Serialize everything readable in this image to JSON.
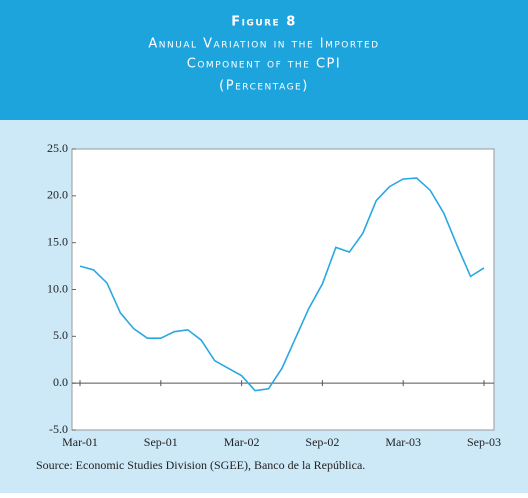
{
  "chart_data": {
    "type": "line",
    "title": [
      "Figure 8",
      "Annual Variation in the Imported",
      "Component of the CPI"
    ],
    "subtitle": "(Percentage)",
    "source": "Source: Economic Studies Division (SGEE), Banco de la República.",
    "categories": [
      "Mar-01",
      null,
      null,
      null,
      null,
      null,
      "Sep-01",
      null,
      null,
      null,
      null,
      null,
      "Mar-02",
      null,
      null,
      null,
      null,
      null,
      "Sep-02",
      null,
      null,
      null,
      null,
      null,
      "Mar-03",
      null,
      null,
      null,
      null,
      null,
      "Sep-03"
    ],
    "series": [
      {
        "color": "#29a8e0",
        "values": [
          12.5,
          12.1,
          10.7,
          7.5,
          5.8,
          4.8,
          4.8,
          5.5,
          5.7,
          4.6,
          2.4,
          1.6,
          0.8,
          -0.8,
          -0.6,
          1.6,
          4.8,
          8.0,
          10.6,
          14.5,
          14.0,
          16.0,
          19.5,
          21.0,
          21.8,
          21.9,
          20.6,
          18.2,
          14.7,
          11.4,
          12.3
        ]
      }
    ],
    "ylim": [
      -5,
      25
    ],
    "yticks": [
      {
        "value": -5,
        "label": "-5.0"
      },
      {
        "value": 0,
        "label": "0.0"
      },
      {
        "value": 5,
        "label": "5.0"
      },
      {
        "value": 10,
        "label": "10.0"
      },
      {
        "value": 15,
        "label": "15.0"
      },
      {
        "value": 20,
        "label": "20.0"
      },
      {
        "value": 25,
        "label": "25.0"
      }
    ]
  }
}
